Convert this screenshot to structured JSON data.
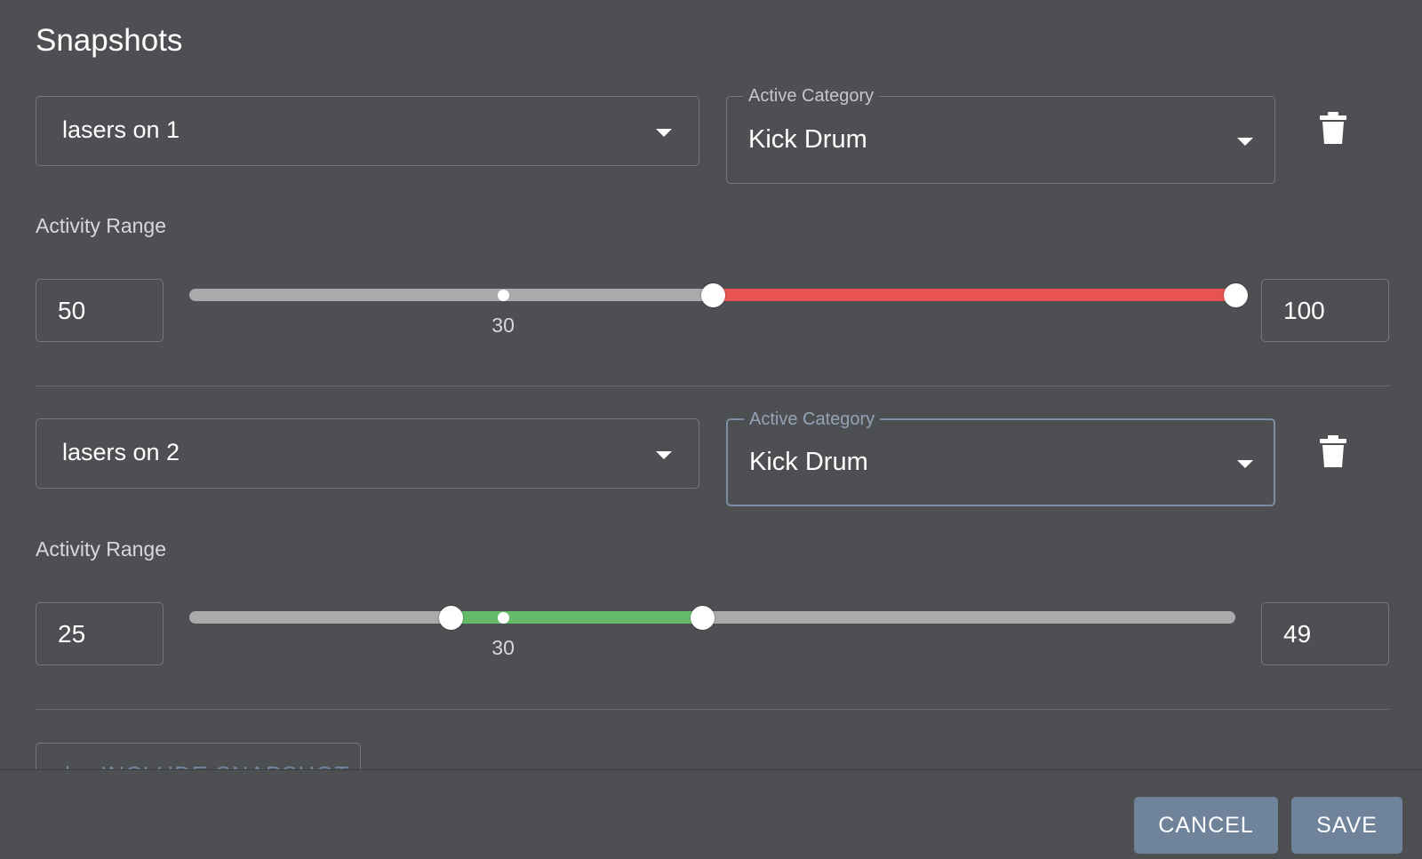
{
  "dialog": {
    "title": "Snapshots"
  },
  "snapshots": [
    {
      "name": "lasers on 1",
      "category_label": "Active Category",
      "category": "Kick Drum",
      "category_focused": false,
      "range_label": "Activity Range",
      "min": "50",
      "max": "100",
      "mark_value": 30,
      "mark_label": "30",
      "track_color": "#e8534f"
    },
    {
      "name": "lasers on 2",
      "category_label": "Active Category",
      "category": "Kick Drum",
      "category_focused": true,
      "range_label": "Activity Range",
      "min": "25",
      "max": "49",
      "mark_value": 30,
      "mark_label": "30",
      "track_color": "#66bb6a"
    }
  ],
  "include_button": {
    "icon": "plus-icon",
    "label": "INCLUDE SNAPSHOT"
  },
  "footer": {
    "cancel_label": "CANCEL",
    "save_label": "SAVE"
  },
  "colors": {
    "background": "#4d4f52",
    "button": "#6f839b",
    "rail": "#a9aaab"
  }
}
